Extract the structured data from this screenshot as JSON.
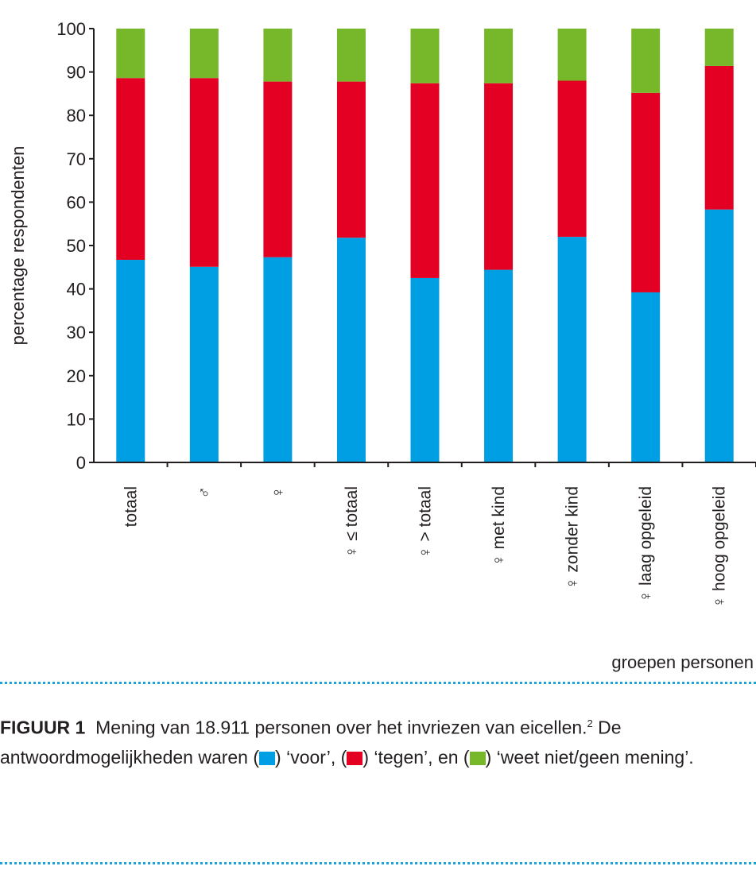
{
  "chart_data": {
    "type": "bar",
    "stacked": true,
    "categories": [
      "totaal",
      "♂",
      "♀",
      "♀ ≤ totaal",
      "♀ > totaal",
      "♀ met kind",
      "♀ zonder kind",
      "♀ laag opgeleid",
      "♀ hoog opgeleid"
    ],
    "series": [
      {
        "name": "voor",
        "color": "#009fe3",
        "values": [
          46.7,
          45.1,
          47.3,
          51.8,
          42.5,
          44.4,
          52.0,
          39.2,
          58.3
        ]
      },
      {
        "name": "tegen",
        "color": "#e30022",
        "values": [
          41.9,
          43.5,
          40.5,
          36.0,
          44.9,
          43.0,
          36.0,
          46.0,
          33.1
        ]
      },
      {
        "name": "weet niet/geen mening",
        "color": "#76b82a",
        "values": [
          11.4,
          11.4,
          12.2,
          12.2,
          12.6,
          12.6,
          12.0,
          14.8,
          8.6
        ]
      }
    ],
    "ylabel": "percentage respondenten",
    "xlabel": "groepen personen",
    "ylim": [
      0,
      100
    ],
    "yticks": [
      0,
      10,
      20,
      30,
      40,
      50,
      60,
      70,
      80,
      90,
      100
    ],
    "grid": false
  },
  "caption": {
    "label": "FIGUUR 1",
    "text1": "Mening van 18.911 personen over het invriezen van eicellen.",
    "sup": "2",
    "text2": " De antwoordmogelijkheden waren (",
    "voor": ") ‘voor’, (",
    "tegen": ") ‘tegen’, en (",
    "weet": ") ‘weet niet/geen mening’."
  }
}
